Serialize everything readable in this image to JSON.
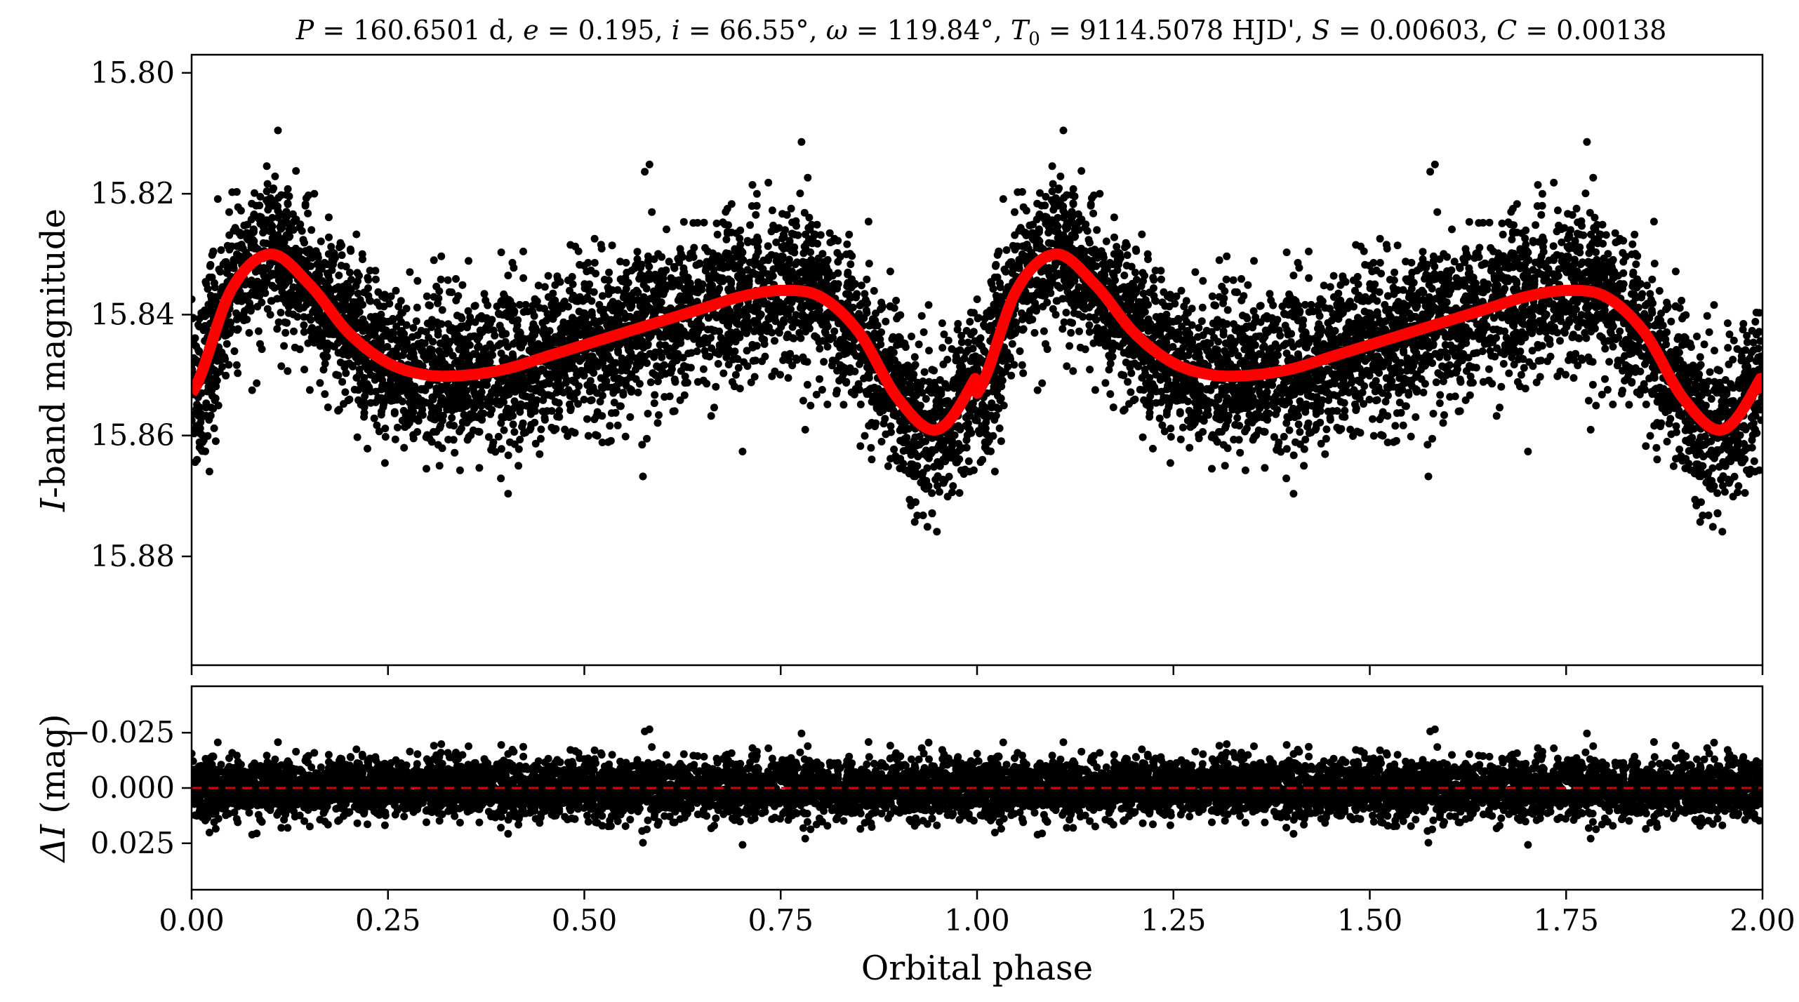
{
  "chart_data": [
    {
      "panel": "top",
      "type": "scatter",
      "title": "P = 160.6501 d, e = 0.195, i = 66.55°, ω = 119.84°, T0 = 9114.5078 HJD', S = 0.00603, C = 0.00138",
      "title_parts": {
        "P_sym": "P",
        "P_val": " = 160.6501 d, ",
        "e_sym": "e",
        "e_val": " = 0.195, ",
        "i_sym": "i",
        "i_val": " = 66.55°, ",
        "w_sym": "ω",
        "w_val": " = 119.84°, ",
        "T_sym": "T",
        "T_sub": "0",
        "T_val": " = 9114.5078 HJD', ",
        "S_sym": "S",
        "S_val": " = 0.00603, ",
        "C_sym": "C",
        "C_val": " = 0.00138"
      },
      "ylabel_sym": "I",
      "ylabel_rest": "-band magnitude",
      "xlim": [
        0.0,
        2.0
      ],
      "ylim": [
        15.898,
        15.797
      ],
      "y_inverted": true,
      "yticks": [
        15.8,
        15.82,
        15.84,
        15.86,
        15.88
      ],
      "ytick_labels": [
        "15.80",
        "15.82",
        "15.84",
        "15.86",
        "15.88"
      ],
      "xticks": [
        0.0,
        0.25,
        0.5,
        0.75,
        1.0,
        1.25,
        1.5,
        1.75,
        2.0
      ],
      "series": [
        {
          "type": "scatter",
          "color": "#000000",
          "description_points": "photometric observations folded in phase, repeated over two cycles"
        },
        {
          "type": "line",
          "color": "#ff0000",
          "x": [
            0.0,
            0.05,
            0.1,
            0.15,
            0.2,
            0.25,
            0.3,
            0.35,
            0.4,
            0.45,
            0.5,
            0.55,
            0.6,
            0.65,
            0.7,
            0.75,
            0.8,
            0.85,
            0.9,
            0.95,
            1.0,
            1.05,
            1.1,
            1.15,
            1.2,
            1.25,
            1.3,
            1.35,
            1.4,
            1.45,
            1.5,
            1.55,
            1.6,
            1.65,
            1.7,
            1.75,
            1.8,
            1.85,
            1.9,
            1.95,
            2.0
          ],
          "y": [
            15.853,
            15.836,
            15.83,
            15.835,
            15.843,
            15.848,
            15.85,
            15.85,
            15.849,
            15.847,
            15.845,
            15.843,
            15.841,
            15.839,
            15.837,
            15.836,
            15.837,
            15.843,
            15.854,
            15.859,
            15.85,
            15.836,
            15.83,
            15.835,
            15.843,
            15.848,
            15.85,
            15.85,
            15.849,
            15.847,
            15.845,
            15.843,
            15.841,
            15.839,
            15.837,
            15.836,
            15.837,
            15.843,
            15.854,
            15.859,
            15.85
          ]
        }
      ]
    },
    {
      "panel": "bottom",
      "type": "scatter",
      "ylabel_sym": "ΔI",
      "ylabel_rest": " (mag)",
      "xlabel": "Orbital phase",
      "xlim": [
        0.0,
        2.0
      ],
      "ylim": [
        0.046,
        -0.046
      ],
      "y_inverted": true,
      "yticks": [
        -0.025,
        0.0,
        0.025
      ],
      "ytick_labels": [
        "−0.025",
        "0.000",
        "0.025"
      ],
      "xticks": [
        0.0,
        0.25,
        0.5,
        0.75,
        1.0,
        1.25,
        1.5,
        1.75,
        2.0
      ],
      "xtick_labels": [
        "0.00",
        "0.25",
        "0.50",
        "0.75",
        "1.00",
        "1.25",
        "1.50",
        "1.75",
        "2.00"
      ],
      "series": [
        {
          "type": "scatter",
          "color": "#000000"
        },
        {
          "type": "line",
          "style": "dashed",
          "color": "#dd0000",
          "x": [
            0.0,
            2.0
          ],
          "y": [
            0.0,
            0.0
          ]
        }
      ]
    }
  ]
}
